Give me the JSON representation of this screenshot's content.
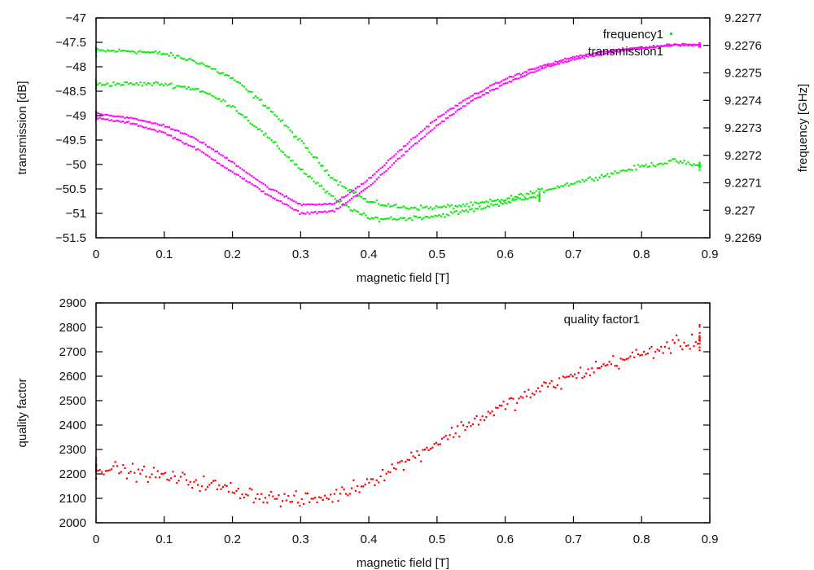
{
  "chart_data": [
    {
      "type": "scatter",
      "xlabel": "magnetic field [T]",
      "ylabel": "transmission [dB]",
      "y2label": "frequency [GHz]",
      "xlim": [
        0,
        0.9
      ],
      "ylim": [
        -51.5,
        -47
      ],
      "y2lim": [
        9.2269,
        9.2277
      ],
      "xticks": [
        "0",
        "0.1",
        "0.2",
        "0.3",
        "0.4",
        "0.5",
        "0.6",
        "0.7",
        "0.8",
        "0.9"
      ],
      "xtick_values": [
        0,
        0.1,
        0.2,
        0.3,
        0.4,
        0.5,
        0.6,
        0.7,
        0.8,
        0.9
      ],
      "yticks": [
        "-47",
        "-47.5",
        "-48",
        "-48.5",
        "-49",
        "-49.5",
        "-50",
        "-50.5",
        "-51",
        "-51.5"
      ],
      "ytick_values": [
        -47,
        -47.5,
        -48,
        -48.5,
        -49,
        -49.5,
        -50,
        -50.5,
        -51,
        -51.5
      ],
      "y2ticks": [
        "9.2277",
        "9.2276",
        "9.2275",
        "9.2274",
        "9.2273",
        "9.2272",
        "9.2271",
        "9.227",
        "9.2269"
      ],
      "y2tick_values": [
        9.2277,
        9.2276,
        9.2275,
        9.2274,
        9.2273,
        9.2272,
        9.2271,
        9.227,
        9.2269
      ],
      "grid": false,
      "legend_position": "top-right",
      "series": [
        {
          "name": "frequency1",
          "axis": "y2",
          "color": "#00ee00",
          "branches": [
            {
              "x": [
                0,
                0.05,
                0.1,
                0.15,
                0.2,
                0.25,
                0.3,
                0.35,
                0.4,
                0.45,
                0.5,
                0.55,
                0.6,
                0.65,
                0.7,
                0.75,
                0.8,
                0.85,
                0.885
              ],
              "y": [
                9.22758,
                9.22758,
                9.22757,
                9.22754,
                9.22748,
                9.22738,
                9.22725,
                9.22711,
                9.22703,
                9.22701,
                9.22701,
                9.22702,
                9.22704,
                9.22707,
                9.2271,
                9.22713,
                9.22716,
                9.22718,
                9.22716
              ]
            },
            {
              "x": [
                0,
                0.05,
                0.1,
                0.15,
                0.2,
                0.25,
                0.3,
                0.35,
                0.4,
                0.45,
                0.5,
                0.55,
                0.6,
                0.65
              ],
              "y": [
                9.22746,
                9.22746,
                9.22746,
                9.22744,
                9.22738,
                9.22727,
                9.22715,
                9.22704,
                9.22697,
                9.22697,
                9.22698,
                9.227,
                9.22703,
                9.22705
              ]
            }
          ],
          "spread": 1.2e-05
        },
        {
          "name": "transmission1",
          "axis": "y",
          "color": "#ff00ff",
          "branches": [
            {
              "x": [
                0,
                0.05,
                0.1,
                0.15,
                0.2,
                0.25,
                0.3,
                0.35,
                0.4,
                0.45,
                0.5,
                0.55,
                0.6,
                0.65,
                0.7,
                0.75,
                0.8,
                0.85,
                0.885
              ],
              "y": [
                -49.05,
                -49.15,
                -49.35,
                -49.7,
                -50.15,
                -50.6,
                -51.0,
                -50.95,
                -50.45,
                -49.8,
                -49.2,
                -48.7,
                -48.35,
                -48.05,
                -47.85,
                -47.72,
                -47.62,
                -47.55,
                -47.55
              ]
            },
            {
              "x": [
                0,
                0.05,
                0.1,
                0.15,
                0.2,
                0.25,
                0.3,
                0.35,
                0.4,
                0.45,
                0.5,
                0.55,
                0.6,
                0.65,
                0.7,
                0.75,
                0.8,
                0.85,
                0.885
              ],
              "y": [
                -48.95,
                -49.05,
                -49.2,
                -49.5,
                -49.95,
                -50.45,
                -50.82,
                -50.8,
                -50.3,
                -49.65,
                -49.05,
                -48.6,
                -48.25,
                -48.0,
                -47.8,
                -47.68,
                -47.6,
                -47.55,
                -47.55
              ]
            }
          ],
          "spread": 0.03
        }
      ]
    },
    {
      "type": "scatter",
      "xlabel": "magnetic field [T]",
      "ylabel": "quality factor",
      "xlim": [
        0,
        0.9
      ],
      "ylim": [
        2000,
        2900
      ],
      "xticks": [
        "0",
        "0.1",
        "0.2",
        "0.3",
        "0.4",
        "0.5",
        "0.6",
        "0.7",
        "0.8",
        "0.9"
      ],
      "xtick_values": [
        0,
        0.1,
        0.2,
        0.3,
        0.4,
        0.5,
        0.6,
        0.7,
        0.8,
        0.9
      ],
      "yticks": [
        "2900",
        "2800",
        "2700",
        "2600",
        "2500",
        "2400",
        "2300",
        "2200",
        "2100",
        "2000"
      ],
      "ytick_values": [
        2900,
        2800,
        2700,
        2600,
        2500,
        2400,
        2300,
        2200,
        2100,
        2000
      ],
      "grid": false,
      "legend_position": "top-right",
      "series": [
        {
          "name": "quality factor1",
          "color": "#ff0000",
          "branches": [
            {
              "x": [
                0,
                0.05,
                0.1,
                0.15,
                0.2,
                0.25,
                0.3,
                0.35,
                0.4,
                0.45,
                0.5,
                0.55,
                0.6,
                0.65,
                0.7,
                0.75,
                0.8,
                0.85,
                0.885
              ],
              "y": [
                2230,
                2210,
                2190,
                2165,
                2135,
                2105,
                2090,
                2110,
                2170,
                2245,
                2330,
                2410,
                2480,
                2545,
                2600,
                2650,
                2690,
                2730,
                2740
              ]
            }
          ],
          "spread": 45
        }
      ]
    }
  ]
}
